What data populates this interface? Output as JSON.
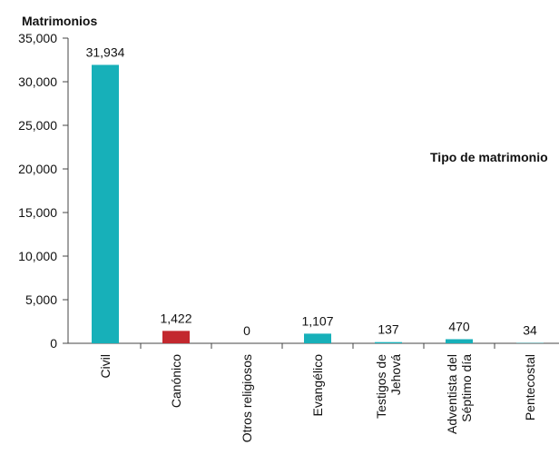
{
  "chart_data": {
    "type": "bar",
    "ylabel": "Matrimonios",
    "xlabel": "Tipo de matrimonio",
    "categories": [
      "Civil",
      "Canónico",
      "Otros religiosos",
      "Evangélico",
      "Testigos de\nJehová",
      "Adventista del\nSéptimo día",
      "Pentecostal"
    ],
    "values": [
      31934,
      1422,
      0,
      1107,
      137,
      470,
      34
    ],
    "value_labels": [
      "31,934",
      "1,422",
      "0",
      "1,107",
      "137",
      "470",
      "34"
    ],
    "colors": [
      "#17b0b9",
      "#c3282e",
      "#17b0b9",
      "#17b0b9",
      "#17b0b9",
      "#17b0b9",
      "#17b0b9"
    ],
    "ylim": [
      0,
      35000
    ],
    "yticks": [
      0,
      {
        "value": 5000,
        "label": "5,000"
      },
      {
        "value": 10000,
        "label": "10,000"
      },
      {
        "value": 15000,
        "label": "15,000"
      },
      {
        "value": 20000,
        "label": "20,000"
      },
      {
        "value": 25000,
        "label": "25,000"
      },
      {
        "value": 30000,
        "label": "30,000"
      },
      {
        "value": 35000,
        "label": "35,000"
      }
    ],
    "grid": false
  }
}
